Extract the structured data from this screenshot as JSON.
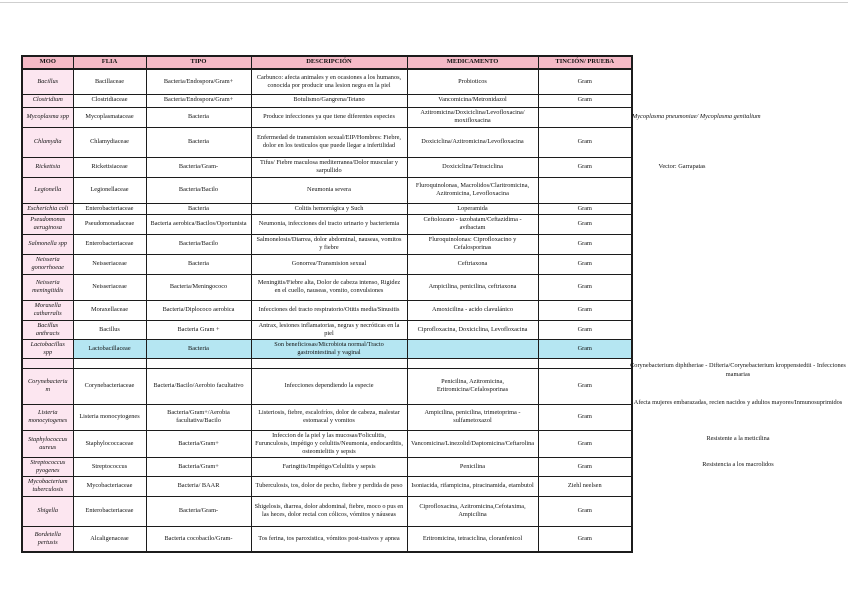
{
  "colors": {
    "header_bg": "#f5bac7",
    "moo_column_bg": "#fce6f0",
    "highlight_bg": "#b5e6f2"
  },
  "table": {
    "headers": [
      "MOO",
      "FLIA",
      "TIPO",
      "DESCRIPCIÓN",
      "MEDICAMENTO",
      "TINCIÓN/ PRUEBA"
    ],
    "rows": [
      {
        "highlight": false,
        "cells": [
          "Bacillus",
          "Bacillaceae",
          "Bacteria/Endospora/Gram+",
          "Carbunco: afecta animales y en ocasiones a los humanos, conocida por producir una lesion negra en la piel",
          "Probioticos",
          "Gram"
        ]
      },
      {
        "highlight": false,
        "cells": [
          "Clostridium",
          "Clostridiaceae",
          "Bacteria/Endospora/Gram+",
          "Botulismo/Gangrena/Tetano",
          "Vancomicina/Metronidazol",
          "Gram"
        ]
      },
      {
        "highlight": false,
        "cells": [
          "Mycoplasma spp",
          "Mycoplasmataceae",
          "Bacteria",
          "Produce infecciones ya que tiene diferentes especies",
          "Azitromicina/Doxiciclina/Levofloxacina/ moxifloxacina",
          ""
        ]
      },
      {
        "highlight": false,
        "cells": [
          "Chlamydia",
          "Chlamydiaceae",
          "Bacteria",
          "Enfermedad de transmision sexual/EIP/Hombres: Fiebre, dolor en los testiculos que puede llegar a infertilidad",
          "Doxiciclina/Azitromicina/Levofloxacina",
          "Gram"
        ]
      },
      {
        "highlight": false,
        "cells": [
          "Rickettsia",
          "Rickettsiaceae",
          "Bacteria/Gram-",
          "Tifus/ Fiebre maculosa mediterranea/Dolor muscular y sarpullido",
          "Doxiciclina/Tetraciclina",
          "Gram"
        ]
      },
      {
        "highlight": false,
        "cells": [
          "Legionella",
          "Legionellaceae",
          "Bacteria/Bacilo",
          "Neumonia severa",
          "Fluroquinolonas, Macrolidos/Claritromicina, Azitromicina, Levofloxacina",
          ""
        ]
      },
      {
        "highlight": false,
        "cells": [
          "Escherichia coli",
          "Enterobacteriaceae",
          "Bacteria",
          "Colitis hemorrágica y Such",
          "Loperamida",
          "Gram"
        ]
      },
      {
        "highlight": false,
        "cells": [
          "Pseudomonas aeruginosa",
          "Pseudomonadaceae",
          "Bacteria aerobica/Bacilos/Oportunista",
          "Neumonia, infecciones del tracto urinario y bacteriemia",
          "Ceftolozano - tazobatam/Ceftazidima - avibactam",
          "Gram"
        ]
      },
      {
        "highlight": false,
        "cells": [
          "Salmonella spp",
          "Enterobacteriaceae",
          "Bacteria/Bacilo",
          "Salmonelosis/Diarrea, dolor abdominal, nauseas, vomitos y fiebre",
          "Fluroquinolonas: Ciprofloxacino y Cefalosporinas",
          "Gram"
        ]
      },
      {
        "highlight": false,
        "cells": [
          "Neisseria gonorrhoeae",
          "Neisseriaceae",
          "Bacteria",
          "Gonorrea/Transmision sexual",
          "Ceftriaxona",
          "Gram"
        ]
      },
      {
        "highlight": false,
        "cells": [
          "Neisseria meningitidis",
          "Neisseriaceae",
          "Bacteria/Meningococo",
          "Meningitis/Fiebre alta, Dolor de cabeza intenso, Rigidez en el cuello, nauseas, vomito, convulsiones",
          "Ampicilina, penicilina, ceftriaxona",
          "Gram"
        ]
      },
      {
        "highlight": false,
        "cells": [
          "Moraxella catharralis",
          "Moraxellaceae",
          "Bacteria/Diplococo aerobica",
          "Infecciones del tracto respiratorio/Otitis media/Sinusitis",
          "Amoxicilina - acido clavulánico",
          "Gram"
        ]
      },
      {
        "highlight": false,
        "cells": [
          "Bacillus anthracis",
          "Bacillus",
          "Bacteria Gram +",
          "Antrax, lesiones inflamatorias, negras y necróticas en la piel",
          "Ciprofloxacina, Doxiciclina, Levofloxacina",
          "Gram"
        ]
      },
      {
        "highlight": true,
        "cells": [
          "Lactobacillus spp",
          "Lactobacillaceae",
          "Bacteria",
          "Son beneficiosas/Microbiota normal/Tracto gastrointestinal y vaginal",
          "",
          "Gram"
        ]
      },
      {
        "highlight": false,
        "cells": [
          "",
          "",
          "",
          "",
          "",
          ""
        ]
      },
      {
        "highlight": false,
        "cells": [
          "Corynebacterium",
          "Corynebacteriaceae",
          "Bacteria/Bacilo/Aerobio facultativo",
          "Infecciones dependiendo la especie",
          "Penicilina, Azitromicina, Eritromicina/Cefalosporinas",
          "Gram"
        ]
      },
      {
        "highlight": false,
        "cells": [
          "Listeria monocytogenes",
          "Listeria monocytogenes",
          "Bacteria/Gram+/Aerobia facultativa/Bacilo",
          "Listeriosis, fiebre, escalofríos, dolor de cabeza, malestar estomacal y vomitos",
          "Ampicilina, penicilina, trimetoprima - sulfametoxazol",
          "Gram"
        ]
      },
      {
        "highlight": false,
        "cells": [
          "Staphylococcus aureus",
          "Staphylococcaceae",
          "Bacteria/Gram+",
          "Infeccion de la piel y las mucosas/Foliculitis, Furunculosis, impétigo y celulitis/Neumonia, endocarditis, osteomielitis y sepsis",
          "Vancomicina/Linezolid/Daptomicina/Ceftarolina",
          "Gram"
        ]
      },
      {
        "highlight": false,
        "cells": [
          "Streptococcus pyogenes",
          "Streptococcus",
          "Bacteria/Gram+",
          "Faringitis/Impétigo/Celulitis y sepsis",
          "Penicilina",
          "Gram"
        ]
      },
      {
        "highlight": false,
        "cells": [
          "Mycobacterium tuberculosis",
          "Mycobacteriaceae",
          "Bacteria/ BAAR",
          "Tuberculosis, tos, dolor de pecho, fiebre y perdida de peso",
          "Isoniacida, rifampicina, piracinamida, etambutol",
          "Ziehl neelsen"
        ]
      },
      {
        "highlight": false,
        "cells": [
          "Shigella",
          "Enterobacteriaceae",
          "Bacteria/Gram-",
          "Shigelosis, diarrea, dolor abdominal, fiebre, moco o pus en las heces, dolor rectal con cólicos, vómitos y náuseas",
          "Ciprofloxacina, Azitromicina,Cefotaxima, Ampicilina",
          "Gram"
        ]
      },
      {
        "highlight": false,
        "cells": [
          "Bordetella pertusis",
          "Alcaligenaceae",
          "Bacteria cocobacilo/Gram-",
          "Tos ferina, tos paroxistica, vómitos post-tusivos y apnea",
          "Eritromicina, tetraciclina, cloranfenicol",
          "Gram"
        ]
      }
    ]
  },
  "side_notes": [
    {
      "text": "Mycoplasma pneumoniae/ Mycoplasma genitalium"
    },
    {
      "text": "Vector: Garrapatas"
    },
    {
      "text": "Corynebacterium diphtheriae - Difteria/Corynebacterium kroppenstedtii - Infecciones mamarias"
    },
    {
      "text": "Afecta mujeres embarazadas, recien nacidos y adultos mayores/Inmunosuprimidos"
    },
    {
      "text": "Resistente a la meticilina"
    },
    {
      "text": "Resistencia a los macrolidos"
    }
  ]
}
